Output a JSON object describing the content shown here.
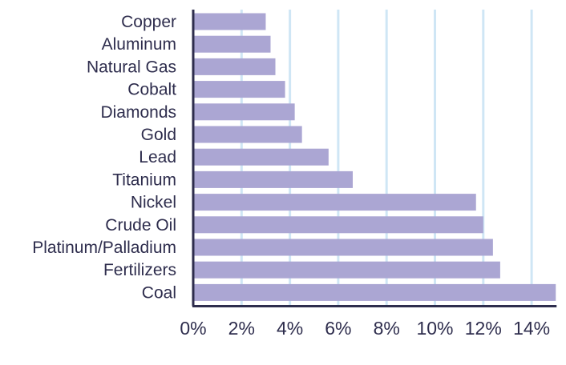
{
  "colors": {
    "bar": "#aba6d3",
    "grid": "#cfe6f5",
    "axis": "#2e2d4d",
    "text": "#2e2d4d"
  },
  "chart_data": {
    "type": "bar",
    "orientation": "horizontal",
    "title": "",
    "xlabel": "",
    "ylabel": "",
    "categories": [
      "Copper",
      "Aluminum",
      "Natural Gas",
      "Cobalt",
      "Diamonds",
      "Gold",
      "Lead",
      "Titanium",
      "Nickel",
      "Crude Oil",
      "Platinum/Palladium",
      "Fertilizers",
      "Coal"
    ],
    "values": [
      3.0,
      3.2,
      3.4,
      3.8,
      4.2,
      4.5,
      5.6,
      6.6,
      11.7,
      12.0,
      12.4,
      12.7,
      15.0
    ],
    "xlim": [
      0,
      15
    ],
    "xticks": [
      0,
      2,
      4,
      6,
      8,
      10,
      12,
      14
    ],
    "xtick_labels": [
      "0%",
      "2%",
      "4%",
      "6%",
      "8%",
      "10%",
      "12%",
      "14%"
    ],
    "grid": true,
    "legend": "none"
  }
}
